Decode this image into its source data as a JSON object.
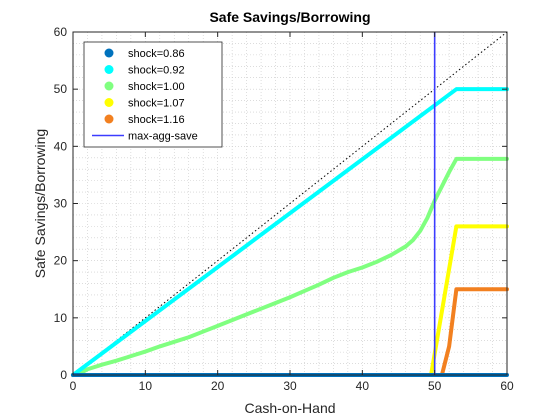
{
  "chart_data": {
    "type": "line",
    "title": "Safe Savings/Borrowing",
    "xlabel": "Cash-on-Hand",
    "ylabel": "Safe Savings/Borrowing",
    "xlim": [
      0,
      60
    ],
    "ylim": [
      0,
      60
    ],
    "xticks": [
      0,
      10,
      20,
      30,
      40,
      50,
      60
    ],
    "yticks": [
      0,
      10,
      20,
      30,
      40,
      50,
      60
    ],
    "grid": "minor-dotted",
    "legend_position": "top-left",
    "series": [
      {
        "name": "shock=0.86",
        "color": "#0072BD",
        "x": [
          0,
          60
        ],
        "y": [
          0,
          0
        ]
      },
      {
        "name": "shock=0.92",
        "color": "#00FFFF",
        "x": [
          0,
          53,
          60
        ],
        "y": [
          0,
          50,
          50
        ]
      },
      {
        "name": "shock=1.00",
        "color": "#80FF80",
        "x": [
          0,
          1,
          2,
          4,
          6,
          8,
          10,
          12,
          14,
          16,
          18,
          20,
          22,
          24,
          26,
          28,
          30,
          32,
          34,
          36,
          38,
          40,
          42,
          44,
          46,
          47,
          48,
          49,
          50,
          51,
          52,
          53,
          60
        ],
        "y": [
          0,
          0.3,
          1.0,
          1.8,
          2.5,
          3.3,
          4.1,
          5.0,
          5.8,
          6.6,
          7.6,
          8.6,
          9.6,
          10.6,
          11.6,
          12.6,
          13.6,
          14.7,
          15.8,
          17.0,
          18.0,
          18.8,
          19.8,
          21.0,
          22.5,
          23.6,
          25.2,
          27.5,
          30.5,
          33.0,
          35.5,
          37.8,
          37.8
        ]
      },
      {
        "name": "shock=1.07",
        "color": "#FFFF00",
        "x": [
          0,
          49.5,
          53,
          60
        ],
        "y": [
          0,
          0,
          26,
          26
        ]
      },
      {
        "name": "shock=1.16",
        "color": "#F28020",
        "x": [
          0,
          51,
          52,
          53,
          60
        ],
        "y": [
          0,
          0,
          5,
          15,
          15
        ]
      }
    ],
    "vertical_line": {
      "name": "max-agg-save",
      "color": "#3C3CFF",
      "x": 50
    },
    "reference_line": {
      "x": [
        0,
        60
      ],
      "y": [
        0,
        60
      ],
      "style": "dotted",
      "color": "#000000"
    }
  }
}
